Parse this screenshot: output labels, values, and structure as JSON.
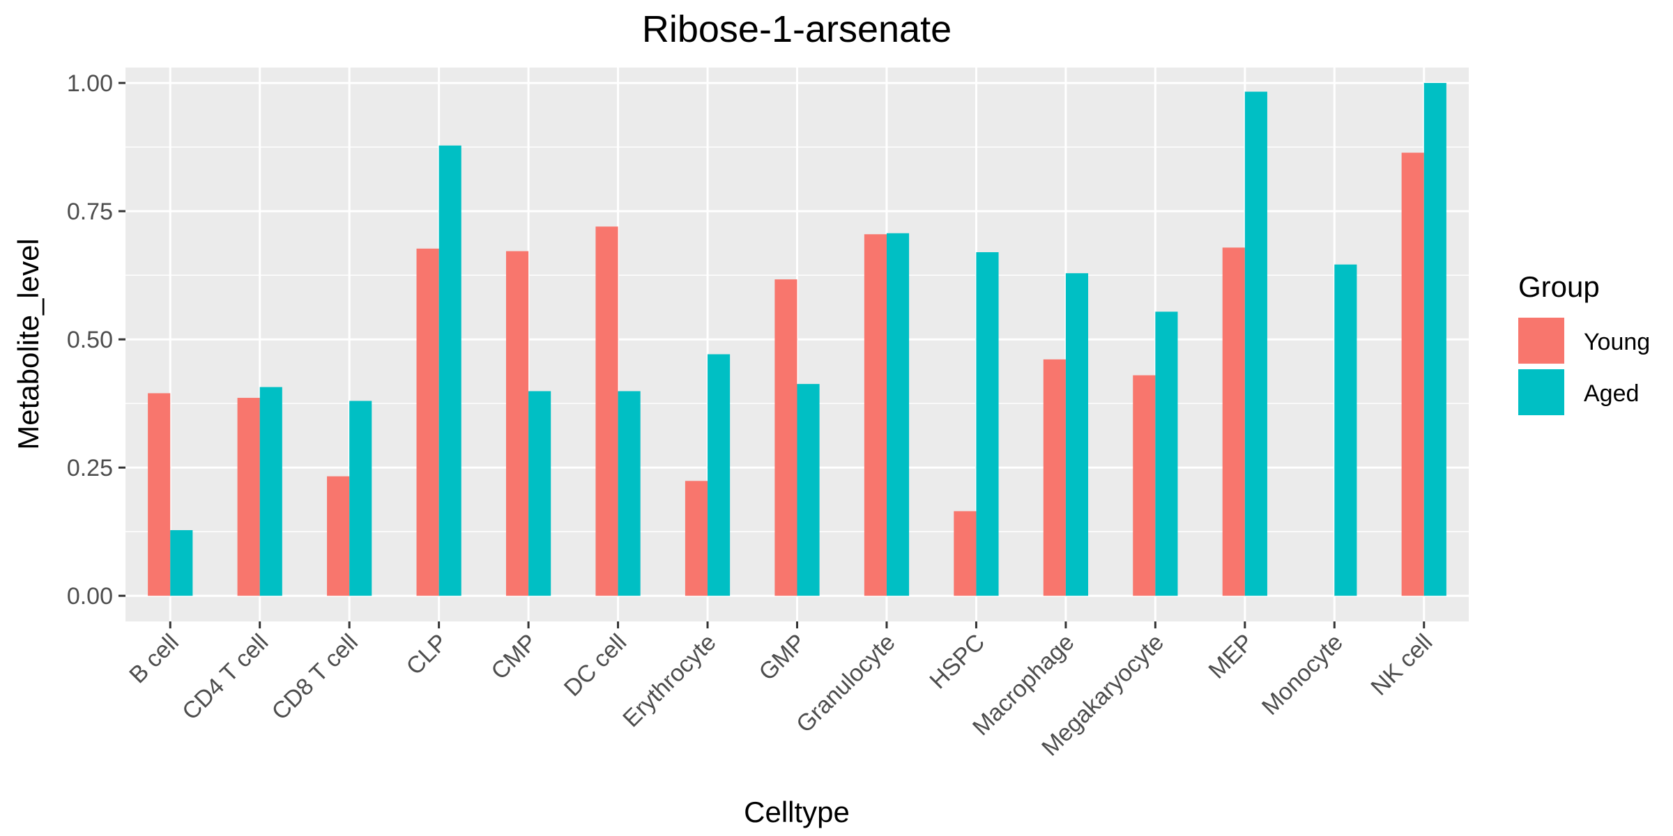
{
  "chart_data": {
    "type": "bar",
    "title": "Ribose-1-arsenate",
    "xlabel": "Celltype",
    "ylabel": "Metabolite_level",
    "categories": [
      "B cell",
      "CD4 T cell",
      "CD8 T cell",
      "CLP",
      "CMP",
      "DC cell",
      "Erythrocyte",
      "GMP",
      "Granulocyte",
      "HSPC",
      "Macrophage",
      "Megakaryocyte",
      "MEP",
      "Monocyte",
      "NK cell"
    ],
    "series": [
      {
        "name": "Young",
        "color": "#F8766D",
        "values": [
          0.395,
          0.386,
          0.233,
          0.677,
          0.672,
          0.72,
          0.224,
          0.617,
          0.705,
          0.165,
          0.461,
          0.43,
          0.679,
          null,
          0.864
        ]
      },
      {
        "name": "Aged",
        "color": "#00BFC4",
        "values": [
          0.128,
          0.407,
          0.38,
          0.878,
          0.399,
          0.399,
          0.471,
          0.413,
          0.707,
          0.67,
          0.629,
          0.554,
          0.983,
          0.646,
          1.0
        ]
      }
    ],
    "ylim": [
      -0.05,
      1.03
    ],
    "yticks": [
      0.0,
      0.25,
      0.5,
      0.75,
      1.0
    ],
    "ytick_labels": [
      "0.00",
      "0.25",
      "0.50",
      "0.75",
      "1.00"
    ],
    "legend": {
      "title": "Group",
      "position": "right"
    },
    "grid": true,
    "background": "#EBEBEB"
  }
}
